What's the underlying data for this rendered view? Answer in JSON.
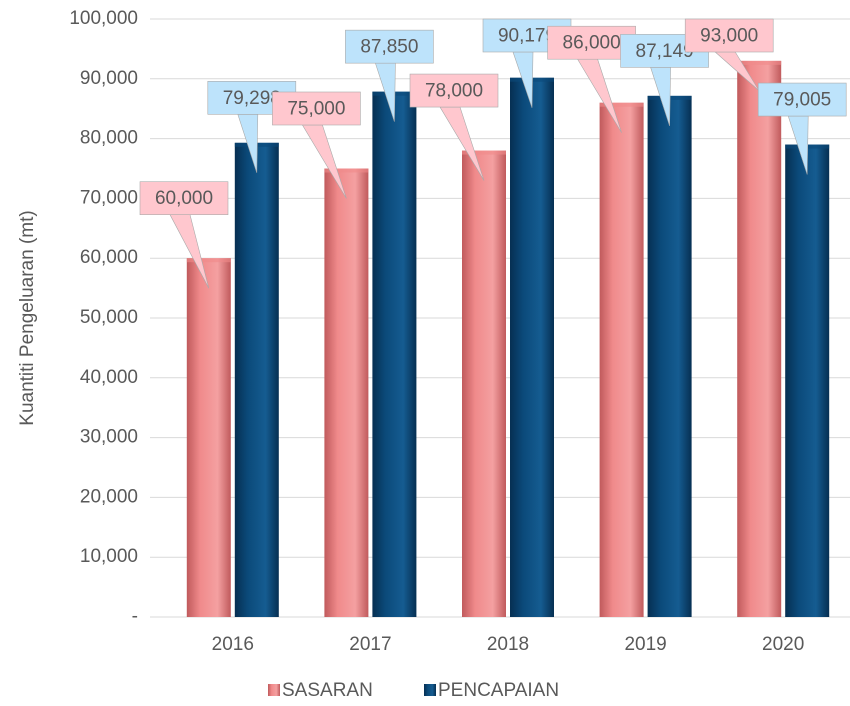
{
  "chart_data": {
    "type": "bar",
    "y_label": "Kuantiti Pengeluaran (mt)",
    "categories": [
      "2016",
      "2017",
      "2018",
      "2019",
      "2020"
    ],
    "series": [
      {
        "name": "SASARAN",
        "color": "#f08a8b",
        "values": [
          60000,
          75000,
          78000,
          86000,
          93000
        ],
        "value_labels": [
          "60,000",
          "75,000",
          "78,000",
          "86,000",
          "93,000"
        ],
        "label_color": "#ffc7ce"
      },
      {
        "name": "PENCAPAIAN",
        "color": "#0b4a7a",
        "values": [
          79298,
          87850,
          90179,
          87149,
          79005
        ],
        "value_labels": [
          "79,298",
          "87,850",
          "90,179",
          "87,149",
          "79,005"
        ],
        "label_color": "#bde3fb"
      }
    ],
    "ylim": [
      0,
      100000
    ],
    "yticks": [
      {
        "value": 0,
        "label": "-"
      },
      {
        "value": 10000,
        "label": "10,000"
      },
      {
        "value": 20000,
        "label": "20,000"
      },
      {
        "value": 30000,
        "label": "30,000"
      },
      {
        "value": 40000,
        "label": "40,000"
      },
      {
        "value": 50000,
        "label": "50,000"
      },
      {
        "value": 60000,
        "label": "60,000"
      },
      {
        "value": 70000,
        "label": "70,000"
      },
      {
        "value": 80000,
        "label": "80,000"
      },
      {
        "value": 90000,
        "label": "90,000"
      },
      {
        "value": 100000,
        "label": "100,000"
      }
    ],
    "grid": true,
    "legend": "bottom"
  }
}
